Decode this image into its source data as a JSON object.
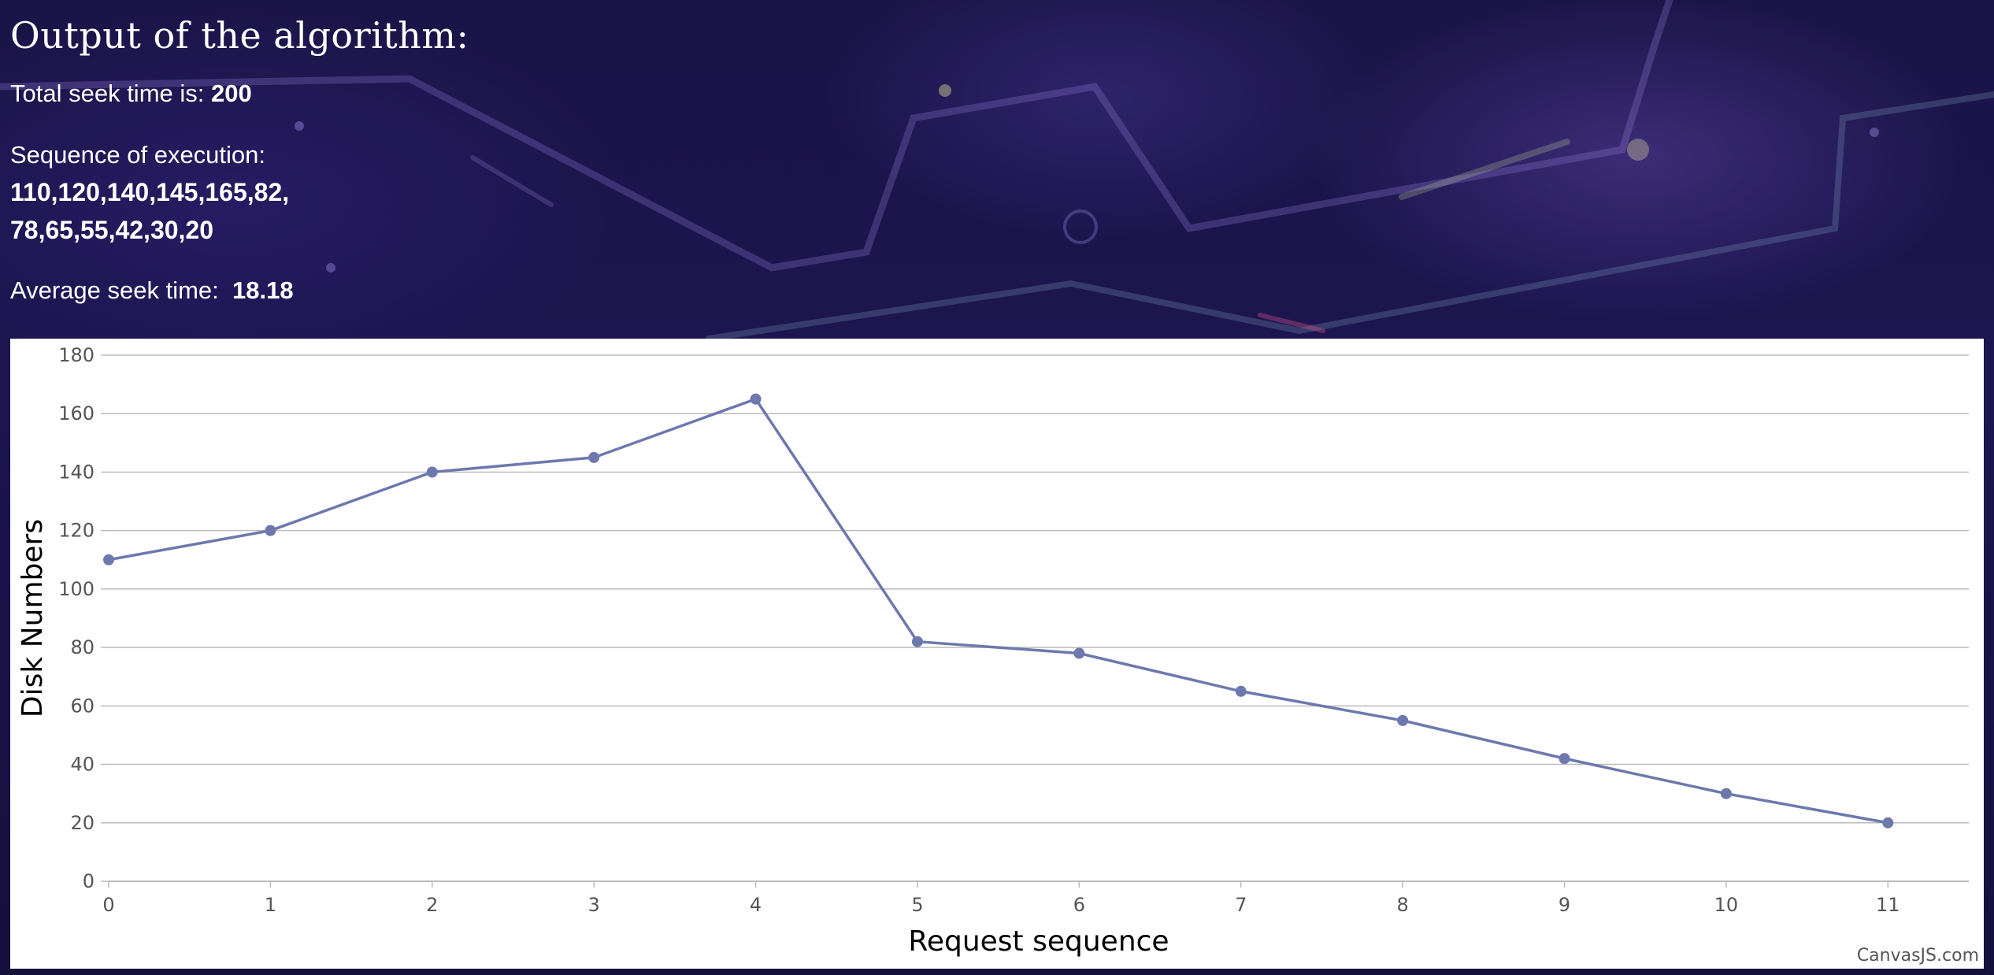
{
  "header": {
    "title": "Output of the algorithm:",
    "total_label": "Total seek time is:",
    "total_value": "200",
    "sequence_label": "Sequence of execution:",
    "sequence_line1": "110,120,140,145,165,82,",
    "sequence_line2": "78,65,55,42,30,20",
    "average_label": "Average seek time:",
    "average_value": "18.18"
  },
  "chart_data": {
    "type": "line",
    "xlabel": "Request sequence",
    "ylabel": "Disk Numbers",
    "x": [
      0,
      1,
      2,
      3,
      4,
      5,
      6,
      7,
      8,
      9,
      10,
      11
    ],
    "series": [
      {
        "values": [
          110,
          120,
          140,
          145,
          165,
          82,
          78,
          65,
          55,
          42,
          30,
          20
        ]
      }
    ],
    "xlim": [
      0,
      11.5
    ],
    "ylim": [
      0,
      180
    ],
    "y_ticks": [
      0,
      20,
      40,
      60,
      80,
      100,
      120,
      140,
      160,
      180
    ],
    "x_ticks": [
      0,
      1,
      2,
      3,
      4,
      5,
      6,
      7,
      8,
      9,
      10,
      11
    ],
    "grid": true,
    "legend": "none",
    "line_color": "#6d78ad",
    "grid_color": "#bbbbbb",
    "credit": "CanvasJS.com"
  },
  "colors": {
    "background": "#1b1448",
    "text": "#ffffff",
    "chart_background": "#ffffff"
  }
}
